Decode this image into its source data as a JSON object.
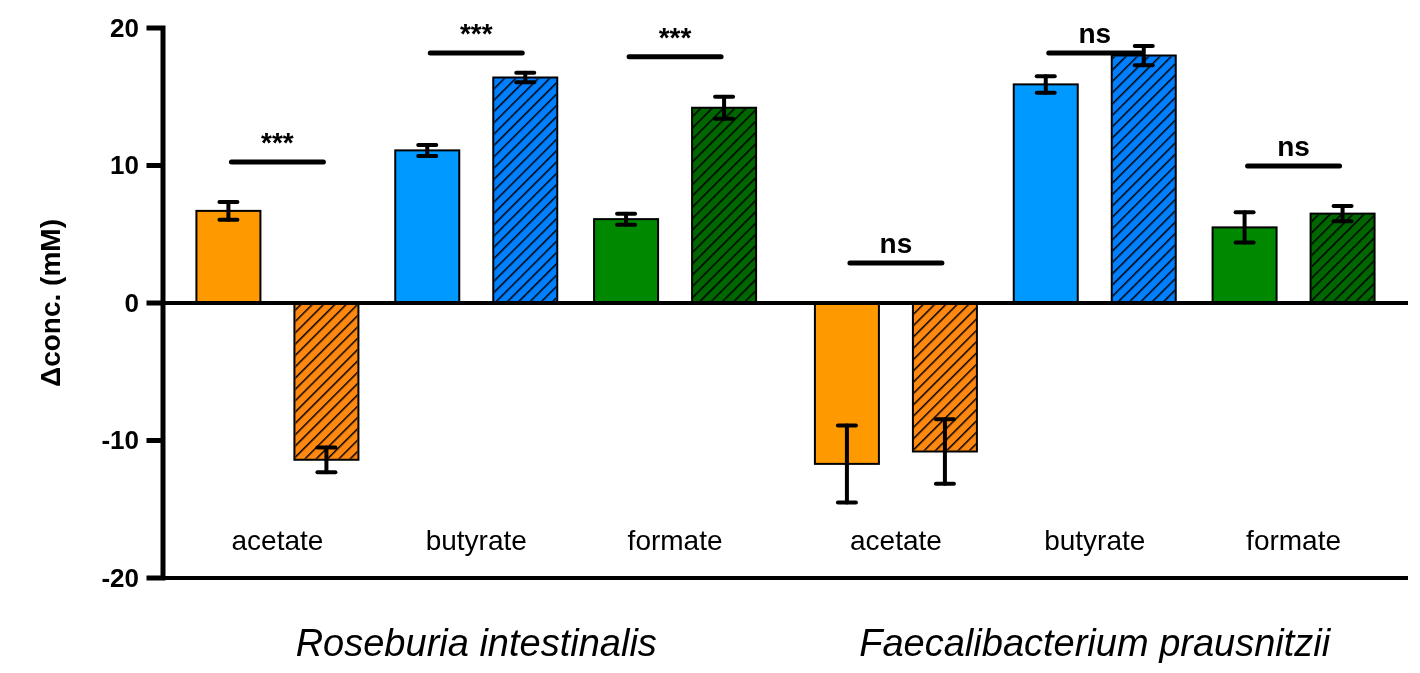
{
  "chart_data": {
    "type": "bar",
    "ylabel": "Δconc. (mM)",
    "categories": [
      "acetate",
      "butyrate",
      "formate",
      "acetate",
      "butyrate",
      "formate"
    ],
    "series": [
      {
        "colors": [
          "#ff9900",
          "#0099ff",
          "#008800",
          "#ff9900",
          "#0099ff",
          "#008800"
        ],
        "values": [
          6.7,
          11.1,
          6.1,
          -11.7,
          15.9,
          5.5
        ],
        "errors": [
          0.65,
          0.4,
          0.4,
          2.8,
          0.6,
          1.1
        ]
      },
      {
        "colors": [
          "#ff8811",
          "#0080ff",
          "#006600",
          "#ff8811",
          "#0080ff",
          "#006600"
        ],
        "values": [
          -11.4,
          16.4,
          14.2,
          -10.8,
          18.0,
          6.5
        ],
        "errors": [
          0.9,
          0.35,
          0.8,
          2.35,
          0.7,
          0.55
        ]
      }
    ],
    "ylim": [
      -20,
      20
    ],
    "yticks": [
      -20,
      -10,
      0,
      10,
      20
    ],
    "annotations": [
      "***",
      "***",
      "***",
      "ns",
      "ns",
      "ns",
      "Roseburia intestinalis",
      "Faecalibacterium prausnitzii"
    ]
  }
}
